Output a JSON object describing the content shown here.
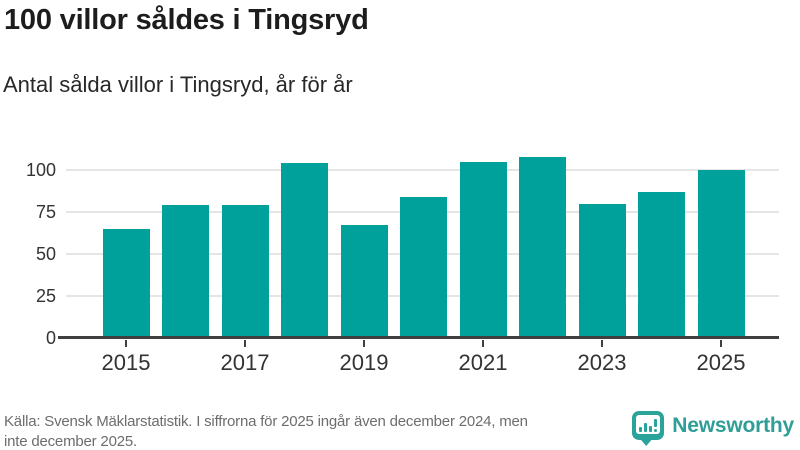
{
  "header": {
    "title": "100 villor såldes i Tingsryd",
    "subtitle": "Antal sålda villor i Tingsryd, år för år"
  },
  "chart_data": {
    "type": "bar",
    "title": "100 villor såldes i Tingsryd",
    "subtitle": "Antal sålda villor i Tingsryd, år för år",
    "categories": [
      "2015",
      "2016",
      "2017",
      "2018",
      "2019",
      "2020",
      "2021",
      "2022",
      "2023",
      "2024",
      "2025"
    ],
    "values": [
      65,
      79,
      79,
      104,
      67,
      84,
      105,
      108,
      80,
      87,
      100
    ],
    "xlabel": "",
    "ylabel": "",
    "ylim": [
      0,
      112
    ],
    "yticks": [
      0,
      25,
      50,
      75,
      100
    ],
    "xtick_labels": [
      "2015",
      "2017",
      "2019",
      "2021",
      "2023",
      "2025"
    ],
    "grid": true,
    "legend": false,
    "bar_color": "#00a19a",
    "axis_color": "#3f3f3f",
    "gridline_color": "#e5e5e5"
  },
  "footer": {
    "lines": [
      "Källa: Svensk Mäklarstatistik. I siffrorna för 2025 ingår även december 2024, men",
      "inte december 2025."
    ]
  },
  "branding": {
    "name": "Newsworthy",
    "logo_color": "#2f9e97",
    "icon": "bar-chart-speech-bubble-icon"
  }
}
